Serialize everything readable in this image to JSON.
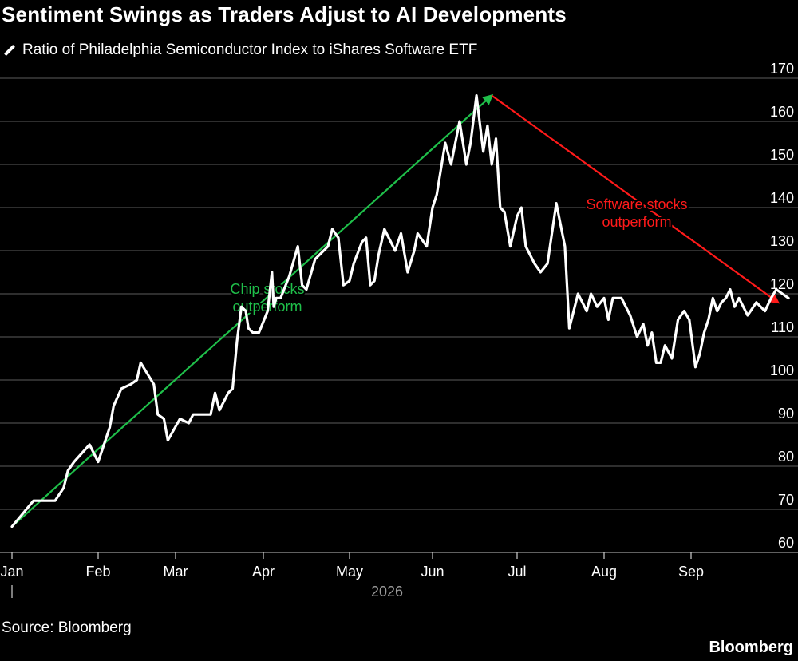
{
  "title": "Sentiment Swings as Traders Adjust to AI Developments",
  "source": "Source: Bloomberg",
  "brand": "Bloomberg",
  "colors": {
    "background": "#000000",
    "line": "#ffffff",
    "grid": "#4a4a4a",
    "green": "#1fbf4a",
    "red": "#ff1a1a",
    "axis_text": "#ffffff",
    "year_text": "#9a9a9a"
  },
  "chart_data": {
    "type": "line",
    "title": "Sentiment Swings as Traders Adjust to AI Developments",
    "xlabel": "2026",
    "ylabel": "",
    "ylim": [
      60,
      170
    ],
    "yticks": [
      60,
      70,
      80,
      90,
      100,
      110,
      120,
      130,
      140,
      150,
      160,
      170
    ],
    "grid": true,
    "legend_position": "top-left",
    "x_ticks": [
      "Jan",
      "Feb",
      "Mar",
      "Apr",
      "May",
      "Jun",
      "Jul",
      "Aug",
      "Sep"
    ],
    "series": [
      {
        "name": "Ratio of Philadelphia Semiconductor Index to iShares Software ETF",
        "x": [
          0,
          0.25,
          0.32,
          0.5,
          0.6,
          0.65,
          0.72,
          0.9,
          1,
          1.15,
          1.2,
          1.3,
          1.42,
          1.5,
          1.55,
          1.72,
          1.77,
          1.85,
          1.9,
          2.05,
          2.15,
          2.2,
          2.3,
          2.4,
          2.45,
          2.5,
          2.6,
          2.65,
          2.7,
          2.75,
          2.8,
          2.83,
          2.88,
          2.95,
          3.05,
          3.1,
          3.12,
          3.15,
          3.2,
          3.3,
          3.4,
          3.45,
          3.5,
          3.6,
          3.75,
          3.8,
          3.87,
          3.93,
          4.0,
          4.05,
          4.15,
          4.2,
          4.25,
          4.3,
          4.35,
          4.42,
          4.55,
          4.62,
          4.7,
          4.78,
          4.82,
          4.93,
          5.0,
          5.05,
          5.15,
          5.22,
          5.32,
          5.4,
          5.45,
          5.52,
          5.55,
          5.6,
          5.65,
          5.7,
          5.75,
          5.8,
          5.85,
          5.92,
          6.0,
          6.05,
          6.1,
          6.2,
          6.27,
          6.35,
          6.45,
          6.55,
          6.6,
          6.7,
          6.75,
          6.8,
          6.85,
          6.92,
          7.0,
          7.05,
          7.1,
          7.2,
          7.3,
          7.38,
          7.45,
          7.5,
          7.55,
          7.6,
          7.65,
          7.7,
          7.78,
          7.85,
          7.92,
          7.98,
          8.05,
          8.1,
          8.15,
          8.2,
          8.25,
          8.3,
          8.35,
          8.4,
          8.45,
          8.5,
          8.55,
          8.65,
          8.75,
          8.85,
          8.92,
          8.98,
          9.05,
          9.12
        ],
        "values": [
          66,
          72,
          72,
          72,
          75,
          79,
          81,
          85,
          81,
          89,
          94,
          98,
          99,
          100,
          104,
          99,
          92,
          91,
          86,
          91,
          90,
          92,
          92,
          92,
          97,
          93,
          97,
          98,
          109,
          117,
          116,
          112,
          111,
          111,
          116,
          125,
          117,
          119,
          119,
          124,
          131,
          122,
          121,
          128,
          131,
          135,
          133,
          122,
          123,
          127,
          132,
          133,
          122,
          123,
          129,
          135,
          130,
          134,
          125,
          130,
          134,
          131,
          140,
          143,
          155,
          150,
          160,
          150,
          155,
          166,
          161,
          153,
          159,
          150,
          156,
          140,
          139,
          131,
          138,
          140,
          131,
          127,
          125,
          127,
          141,
          131,
          112,
          120,
          118,
          116,
          120,
          117,
          119,
          114,
          119,
          119,
          115,
          110,
          113,
          108,
          111,
          104,
          104,
          108,
          105,
          114,
          116,
          114,
          103,
          106,
          111,
          114,
          119,
          116,
          118,
          119,
          121,
          117,
          119,
          115,
          118,
          116,
          119,
          121,
          120,
          119
        ]
      }
    ],
    "annotations": [
      {
        "text_line1": "Chip stocks",
        "text_line2": "outperform",
        "color": "green",
        "arrow_from": {
          "x": 0,
          "y": 66
        },
        "arrow_to": {
          "x": 5.7,
          "y": 166
        }
      },
      {
        "text_line1": "Software stocks",
        "text_line2": "outperform",
        "color": "red",
        "arrow_from": {
          "x": 5.7,
          "y": 166
        },
        "arrow_to": {
          "x": 9.0,
          "y": 118
        }
      }
    ]
  }
}
